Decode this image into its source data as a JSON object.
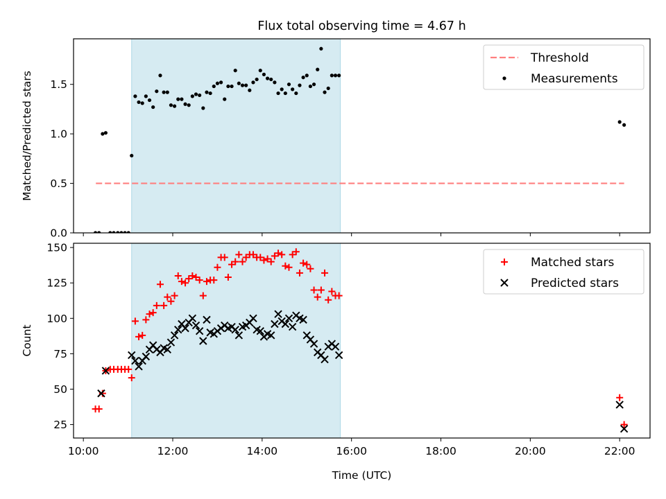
{
  "chart_data": [
    {
      "type": "scatter",
      "title": "Flux total observing time = 4.67 h",
      "xlabel": "",
      "ylabel": "Matched/Predicted stars",
      "xlim": [
        9.78,
        22.68
      ],
      "ylim": [
        0,
        1.96
      ],
      "yticks": [
        0.0,
        0.5,
        1.0,
        1.5
      ],
      "ytick_labels": [
        "0.0",
        "0.5",
        "1.0",
        "1.5"
      ],
      "shaded_span": {
        "x": [
          11.08,
          15.75
        ],
        "color": "#add8e6"
      },
      "legend": {
        "position": "top-right",
        "entries": [
          "Threshold",
          "Measurements"
        ]
      },
      "series": [
        {
          "name": "Threshold",
          "style": "dashed-line",
          "color": "#ff7f7f",
          "x": [
            10.28,
            22.1
          ],
          "values": [
            0.5,
            0.5
          ]
        },
        {
          "name": "Measurements",
          "style": "dot",
          "color": "#000000",
          "x": [
            10.27,
            10.35,
            10.43,
            10.5,
            10.6,
            10.68,
            10.77,
            10.85,
            10.93,
            11.01,
            11.08,
            11.16,
            11.24,
            11.32,
            11.4,
            11.48,
            11.56,
            11.64,
            11.72,
            11.8,
            11.88,
            11.96,
            12.04,
            12.12,
            12.2,
            12.28,
            12.36,
            12.44,
            12.52,
            12.6,
            12.68,
            12.76,
            12.84,
            12.92,
            13.0,
            13.08,
            13.16,
            13.24,
            13.32,
            13.4,
            13.48,
            13.56,
            13.64,
            13.72,
            13.8,
            13.88,
            13.96,
            14.04,
            14.12,
            14.2,
            14.28,
            14.36,
            14.44,
            14.52,
            14.6,
            14.68,
            14.76,
            14.84,
            14.92,
            15.0,
            15.08,
            15.16,
            15.24,
            15.32,
            15.4,
            15.48,
            15.56,
            15.64,
            15.72,
            22.0,
            22.1
          ],
          "values": [
            0.0,
            0.0,
            1.0,
            1.01,
            0.0,
            0.0,
            0.0,
            0.0,
            0.0,
            0.0,
            0.78,
            1.38,
            1.32,
            1.31,
            1.38,
            1.34,
            1.27,
            1.43,
            1.59,
            1.42,
            1.42,
            1.29,
            1.28,
            1.35,
            1.35,
            1.3,
            1.29,
            1.38,
            1.4,
            1.39,
            1.26,
            1.42,
            1.41,
            1.48,
            1.51,
            1.52,
            1.35,
            1.48,
            1.48,
            1.64,
            1.51,
            1.49,
            1.49,
            1.44,
            1.52,
            1.55,
            1.64,
            1.6,
            1.56,
            1.55,
            1.52,
            1.41,
            1.45,
            1.41,
            1.5,
            1.45,
            1.41,
            1.49,
            1.57,
            1.59,
            1.48,
            1.5,
            1.65,
            1.86,
            1.42,
            1.46,
            1.59,
            1.59,
            1.59,
            1.12,
            1.09
          ]
        }
      ]
    },
    {
      "type": "scatter",
      "title": "",
      "xlabel": "Time (UTC)",
      "ylabel": "Count",
      "xlim": [
        9.78,
        22.68
      ],
      "ylim": [
        15.5,
        153
      ],
      "yticks": [
        25,
        50,
        75,
        100,
        125,
        150
      ],
      "ytick_labels": [
        "25",
        "50",
        "75",
        "100",
        "125",
        "150"
      ],
      "xticks": [
        10,
        12,
        14,
        16,
        18,
        20,
        22
      ],
      "xtick_labels": [
        "10:00",
        "12:00",
        "14:00",
        "16:00",
        "18:00",
        "20:00",
        "22:00"
      ],
      "shaded_span": {
        "x": [
          11.08,
          15.75
        ],
        "color": "#add8e6"
      },
      "legend": {
        "position": "top-right",
        "entries": [
          "Matched stars",
          "Predicted stars"
        ]
      },
      "series": [
        {
          "name": "Matched stars",
          "marker": "plus",
          "color": "#ff0000",
          "x": [
            10.27,
            10.35,
            10.43,
            10.5,
            10.6,
            10.68,
            10.77,
            10.85,
            10.93,
            11.01,
            11.08,
            11.16,
            11.24,
            11.32,
            11.4,
            11.48,
            11.56,
            11.64,
            11.72,
            11.8,
            11.88,
            11.96,
            12.04,
            12.12,
            12.2,
            12.28,
            12.36,
            12.44,
            12.52,
            12.6,
            12.68,
            12.76,
            12.84,
            12.92,
            13.0,
            13.08,
            13.16,
            13.24,
            13.32,
            13.4,
            13.48,
            13.56,
            13.64,
            13.72,
            13.8,
            13.88,
            13.96,
            14.04,
            14.12,
            14.2,
            14.28,
            14.36,
            14.44,
            14.52,
            14.6,
            14.68,
            14.76,
            14.84,
            14.92,
            15.0,
            15.08,
            15.16,
            15.24,
            15.32,
            15.4,
            15.48,
            15.56,
            15.64,
            15.72,
            22.0,
            22.1
          ],
          "values": [
            36,
            36,
            47,
            63,
            64,
            64,
            64,
            64,
            64,
            64,
            58,
            98,
            87,
            88,
            99,
            103,
            104,
            109,
            124,
            109,
            115,
            112,
            116,
            130,
            126,
            125,
            128,
            130,
            129,
            127,
            116,
            126,
            127,
            127,
            136,
            143,
            143,
            129,
            138,
            140,
            145,
            140,
            143,
            145,
            145,
            143,
            143,
            141,
            142,
            140,
            144,
            146,
            145,
            137,
            136,
            145,
            147,
            132,
            139,
            138,
            135,
            120,
            115,
            120,
            132,
            113,
            119,
            116,
            116,
            44,
            25
          ]
        },
        {
          "name": "Predicted stars",
          "marker": "x",
          "color": "#000000",
          "x": [
            10.4,
            10.5,
            11.08,
            11.16,
            11.24,
            11.32,
            11.4,
            11.48,
            11.56,
            11.64,
            11.72,
            11.8,
            11.88,
            11.96,
            12.04,
            12.12,
            12.2,
            12.28,
            12.36,
            12.44,
            12.52,
            12.6,
            12.68,
            12.76,
            12.84,
            12.92,
            13.0,
            13.08,
            13.16,
            13.24,
            13.32,
            13.4,
            13.48,
            13.56,
            13.64,
            13.72,
            13.8,
            13.88,
            13.96,
            14.04,
            14.12,
            14.2,
            14.28,
            14.36,
            14.44,
            14.52,
            14.6,
            14.68,
            14.76,
            14.84,
            14.92,
            15.0,
            15.08,
            15.16,
            15.24,
            15.32,
            15.4,
            15.48,
            15.56,
            15.64,
            15.72,
            22.0,
            22.1
          ],
          "values": [
            47,
            63,
            74,
            70,
            66,
            70,
            73,
            78,
            81,
            78,
            76,
            79,
            78,
            83,
            88,
            92,
            96,
            93,
            97,
            100,
            95,
            91,
            84,
            99,
            90,
            89,
            91,
            93,
            95,
            93,
            94,
            92,
            88,
            94,
            95,
            97,
            100,
            92,
            91,
            87,
            89,
            88,
            96,
            103,
            98,
            96,
            100,
            94,
            102,
            100,
            99,
            88,
            85,
            82,
            76,
            74,
            71,
            80,
            82,
            80,
            74,
            39,
            22
          ]
        }
      ]
    }
  ]
}
